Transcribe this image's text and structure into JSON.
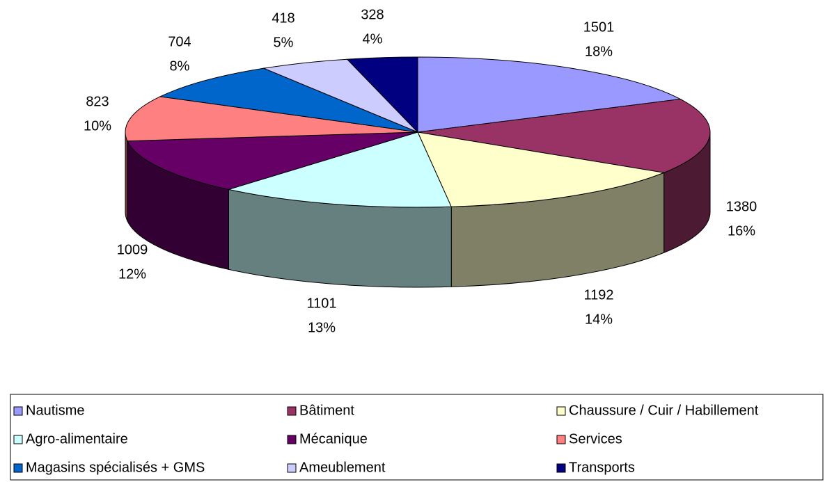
{
  "chart_data": {
    "type": "pie3d",
    "categories": [
      "Nautisme",
      "Bâtiment",
      "Chaussure / Cuir / Habillement",
      "Agro-alimentaire",
      "Mécanique",
      "Services",
      "Magasins spécialisés + GMS",
      "Ameublement",
      "Transports"
    ],
    "values": [
      1501,
      1380,
      1192,
      1101,
      1009,
      823,
      704,
      418,
      328
    ],
    "percent_labels": [
      "18%",
      "16%",
      "14%",
      "13%",
      "12%",
      "10%",
      "8%",
      "5%",
      "4%"
    ],
    "colors": [
      "#9999ff",
      "#993366",
      "#ffffcc",
      "#ccffff",
      "#660066",
      "#ff8080",
      "#0066cc",
      "#ccccff",
      "#000080"
    ],
    "legend": "bottom"
  }
}
